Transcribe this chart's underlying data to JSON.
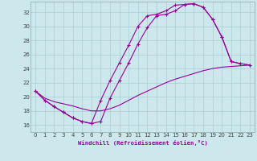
{
  "xlabel": "Windchill (Refroidissement éolien,°C)",
  "xlim": [
    -0.5,
    23.5
  ],
  "ylim": [
    15.0,
    33.5
  ],
  "xticks": [
    0,
    1,
    2,
    3,
    4,
    5,
    6,
    7,
    8,
    9,
    10,
    11,
    12,
    13,
    14,
    15,
    16,
    17,
    18,
    19,
    20,
    21,
    22,
    23
  ],
  "yticks": [
    16,
    18,
    20,
    22,
    24,
    26,
    28,
    30,
    32
  ],
  "bg_color": "#cce8ec",
  "grid_color": "#aacdd4",
  "line_color": "#990099",
  "curve1_x": [
    0,
    1,
    2,
    3,
    4,
    5,
    6,
    7,
    8,
    9,
    10,
    11,
    12,
    13,
    14,
    15,
    16,
    17,
    18,
    19,
    20,
    21,
    22,
    23
  ],
  "curve1_y": [
    20.8,
    19.5,
    18.6,
    17.8,
    17.0,
    16.5,
    16.2,
    19.5,
    22.3,
    24.8,
    27.3,
    30.0,
    31.5,
    31.7,
    32.2,
    33.0,
    33.1,
    33.2,
    32.7,
    31.0,
    28.5,
    25.0,
    24.7,
    24.5
  ],
  "curve2_x": [
    0,
    1,
    2,
    3,
    4,
    5,
    6,
    7,
    8,
    9,
    10,
    11,
    12,
    13,
    14,
    15,
    16,
    17,
    18,
    19,
    20,
    21,
    22,
    23
  ],
  "curve2_y": [
    20.8,
    19.5,
    18.6,
    17.8,
    17.0,
    16.5,
    16.2,
    16.5,
    19.8,
    22.3,
    24.8,
    27.5,
    29.8,
    31.5,
    31.7,
    32.2,
    33.1,
    33.2,
    32.7,
    31.0,
    28.5,
    25.0,
    24.7,
    24.5
  ],
  "curve3_x": [
    0,
    1,
    2,
    3,
    4,
    5,
    6,
    7,
    8,
    9,
    10,
    11,
    12,
    13,
    14,
    15,
    16,
    17,
    18,
    19,
    20,
    21,
    22,
    23
  ],
  "curve3_y": [
    20.8,
    19.8,
    19.3,
    19.0,
    18.7,
    18.3,
    18.0,
    18.0,
    18.3,
    18.8,
    19.5,
    20.2,
    20.8,
    21.4,
    22.0,
    22.5,
    22.9,
    23.3,
    23.7,
    24.0,
    24.2,
    24.3,
    24.4,
    24.5
  ]
}
